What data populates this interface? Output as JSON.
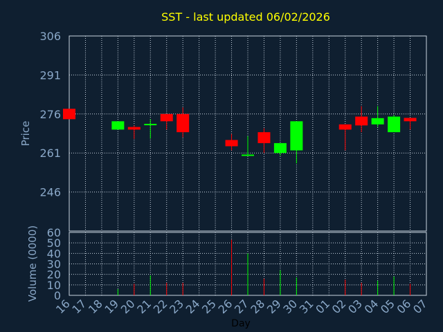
{
  "chart_data": {
    "type": "candlestick",
    "title": "SST - last updated 06/02/2026",
    "days": [
      "16",
      "17",
      "18",
      "19",
      "20",
      "21",
      "22",
      "23",
      "24",
      "25",
      "26",
      "27",
      "28",
      "29",
      "30",
      "31",
      "01",
      "02",
      "03",
      "04",
      "05",
      "06",
      "07"
    ],
    "xlabel": "Day",
    "price": {
      "ylabel": "Price",
      "ylim": [
        231,
        306
      ],
      "ticks": [
        306,
        291,
        276,
        261,
        246
      ],
      "candles": [
        {
          "day": "16",
          "open": 278.0,
          "close": 274.0,
          "high": 278.0,
          "low": 274.0,
          "color": "red"
        },
        {
          "day": "19",
          "open": 270.0,
          "close": 273.2,
          "high": 273.2,
          "low": 270.0,
          "color": "green"
        },
        {
          "day": "20",
          "open": 271.0,
          "close": 270.0,
          "high": 271.6,
          "low": 266.4,
          "color": "red"
        },
        {
          "day": "21",
          "open": 272.0,
          "close": 272.2,
          "high": 274.0,
          "low": 266.5,
          "color": "green"
        },
        {
          "day": "22",
          "open": 276.0,
          "close": 273.2,
          "high": 276.0,
          "low": 270.0,
          "color": "red"
        },
        {
          "day": "23",
          "open": 276.0,
          "close": 269.0,
          "high": 278.5,
          "low": 267.0,
          "color": "red"
        },
        {
          "day": "26",
          "open": 266.0,
          "close": 263.6,
          "high": 268.3,
          "low": 262.0,
          "color": "red"
        },
        {
          "day": "27",
          "open": 260.0,
          "close": 260.4,
          "high": 267.5,
          "low": 260.0,
          "color": "green"
        },
        {
          "day": "28",
          "open": 269.0,
          "close": 264.8,
          "high": 270.5,
          "low": 261.0,
          "color": "red"
        },
        {
          "day": "29",
          "open": 261.0,
          "close": 264.8,
          "high": 264.8,
          "low": 260.0,
          "color": "green"
        },
        {
          "day": "30",
          "open": 262.0,
          "close": 273.2,
          "high": 273.2,
          "low": 257.0,
          "color": "green"
        },
        {
          "day": "02",
          "open": 272.0,
          "close": 270.0,
          "high": 272.0,
          "low": 262.0,
          "color": "red"
        },
        {
          "day": "03",
          "open": 275.0,
          "close": 271.6,
          "high": 279.0,
          "low": 269.0,
          "color": "red"
        },
        {
          "day": "04",
          "open": 272.0,
          "close": 274.4,
          "high": 279.0,
          "low": 271.0,
          "color": "green"
        },
        {
          "day": "05",
          "open": 269.0,
          "close": 275.0,
          "high": 275.6,
          "low": 269.0,
          "color": "green"
        },
        {
          "day": "06",
          "open": 274.5,
          "close": 273.2,
          "high": 274.5,
          "low": 270.0,
          "color": "red"
        }
      ]
    },
    "volume": {
      "ylabel": "Volume (0000)",
      "ylim": [
        0,
        60
      ],
      "ticks": [
        60,
        50,
        40,
        30,
        20,
        10,
        0
      ],
      "bars": [
        {
          "day": "19",
          "value": 6,
          "color": "green"
        },
        {
          "day": "20",
          "value": 11,
          "color": "red"
        },
        {
          "day": "21",
          "value": 19,
          "color": "green"
        },
        {
          "day": "22",
          "value": 12,
          "color": "red"
        },
        {
          "day": "23",
          "value": 12,
          "color": "red"
        },
        {
          "day": "26",
          "value": 53,
          "color": "red"
        },
        {
          "day": "27",
          "value": 40,
          "color": "green"
        },
        {
          "day": "28",
          "value": 16,
          "color": "red"
        },
        {
          "day": "29",
          "value": 24,
          "color": "green"
        },
        {
          "day": "30",
          "value": 17,
          "color": "green"
        },
        {
          "day": "02",
          "value": 15,
          "color": "red"
        },
        {
          "day": "03",
          "value": 12,
          "color": "red"
        },
        {
          "day": "04",
          "value": 14,
          "color": "green"
        },
        {
          "day": "05",
          "value": 18,
          "color": "green"
        },
        {
          "day": "06",
          "value": 11,
          "color": "red"
        }
      ]
    },
    "grid": true,
    "colors": {
      "background": "#0f1f30",
      "title": "#ffff00",
      "axis_text": "#8aa8c8",
      "grid": "#c8d4e0",
      "up": "#00ff00",
      "down": "#ff0000"
    }
  }
}
